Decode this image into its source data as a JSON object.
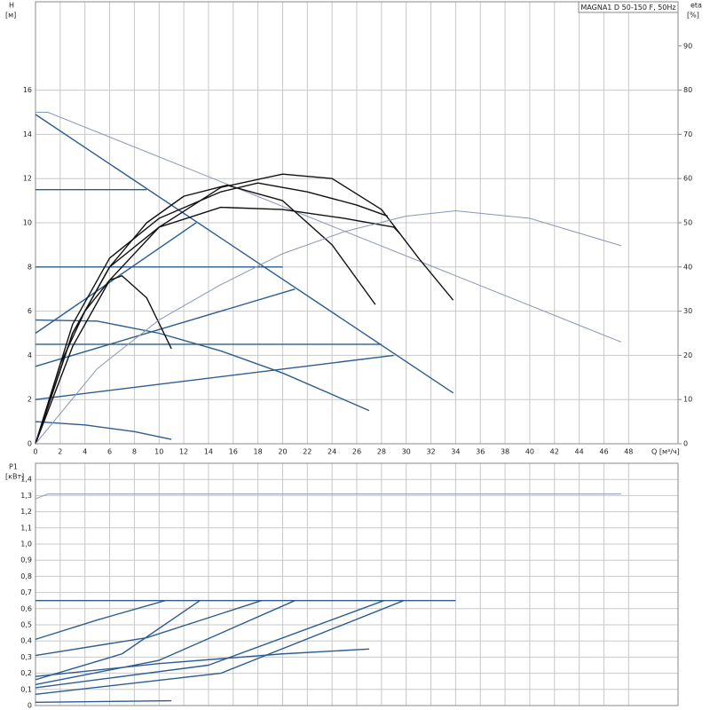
{
  "chart_data": [
    {
      "type": "line",
      "title": "MAGNA1 D 50-150 F, 50Hz",
      "y_label": "H",
      "y_unit": "[м]",
      "y2_label": "eta",
      "y2_unit": "[%]",
      "x_label": "Q [м³/ч]",
      "xlim": [
        0,
        52
      ],
      "xticks": [
        0,
        2,
        4,
        6,
        8,
        10,
        12,
        14,
        16,
        18,
        20,
        22,
        24,
        26,
        28,
        30,
        32,
        34,
        36,
        38,
        40,
        42,
        44,
        46,
        48
      ],
      "ylim": [
        0,
        20
      ],
      "yticks": [
        0,
        2,
        4,
        6,
        8,
        10,
        12,
        14,
        16
      ],
      "y2lim": [
        0,
        100
      ],
      "y2ticks": [
        0,
        10,
        20,
        30,
        40,
        50,
        60,
        70,
        80,
        90
      ],
      "grid": true,
      "series": [
        {
          "color": "#2b5d91",
          "x": [
            0,
            33.8
          ],
          "values": [
            14.9,
            2.3
          ]
        },
        {
          "color": "#2b5d91",
          "x": [
            0,
            9
          ],
          "values": [
            11.5,
            11.5
          ]
        },
        {
          "color": "#2b5d91",
          "x": [
            0,
            20
          ],
          "values": [
            8,
            8
          ]
        },
        {
          "color": "#2b5d91",
          "x": [
            0,
            28
          ],
          "values": [
            4.5,
            4.5
          ]
        },
        {
          "color": "#2b5d91",
          "x": [
            0,
            13
          ],
          "values": [
            5,
            10
          ]
        },
        {
          "color": "#2b5d91",
          "x": [
            0,
            21
          ],
          "values": [
            3.5,
            7
          ]
        },
        {
          "color": "#2b5d91",
          "x": [
            0,
            29
          ],
          "values": [
            2,
            4
          ]
        },
        {
          "color": "#2b5d91",
          "x": [
            0,
            5,
            10,
            15,
            20,
            27
          ],
          "values": [
            5.6,
            5.55,
            5.0,
            4.2,
            3.2,
            1.5
          ]
        },
        {
          "color": "#2b5d91",
          "x": [
            0,
            4,
            8,
            11
          ],
          "values": [
            1.0,
            0.85,
            0.55,
            0.2
          ]
        },
        {
          "color": "#8a96b4",
          "x": [
            0,
            1,
            47.4
          ],
          "values": [
            15,
            15,
            4.6
          ]
        },
        {
          "color": "#111111",
          "axis": "y2",
          "x": [
            0,
            2,
            4,
            6,
            7,
            9,
            11
          ],
          "values": [
            0,
            18,
            30,
            37,
            38,
            33,
            21.5
          ]
        },
        {
          "color": "#111111",
          "axis": "y2",
          "x": [
            0,
            3,
            6,
            9,
            12,
            15.5,
            20,
            24,
            27.5
          ],
          "values": [
            0,
            25,
            40,
            50,
            56,
            58.5,
            55,
            45,
            31.5
          ]
        },
        {
          "color": "#111111",
          "axis": "y2",
          "x": [
            0,
            3,
            6,
            10,
            15,
            20,
            24,
            28,
            31,
            33.8
          ],
          "values": [
            0,
            22,
            37,
            49,
            58,
            61,
            60,
            53,
            42,
            32.5
          ]
        },
        {
          "color": "#111111",
          "axis": "y2",
          "x": [
            0,
            3,
            6,
            10,
            15,
            20,
            25,
            29,
            29.5
          ],
          "values": [
            0,
            25,
            40,
            49,
            53.5,
            53,
            51,
            49,
            47.5
          ]
        },
        {
          "color": "#111111",
          "axis": "y2",
          "x": [
            0,
            3,
            6,
            10,
            15,
            18,
            22,
            26,
            28.5
          ],
          "values": [
            0,
            27,
            42,
            51,
            57,
            59,
            57,
            54,
            51.5
          ]
        },
        {
          "color": "#8a96b4",
          "axis": "y2",
          "x": [
            0,
            5,
            10,
            15,
            20,
            25,
            30,
            34,
            40,
            47.4
          ],
          "values": [
            0,
            17,
            28,
            36,
            43,
            48,
            51.5,
            52.7,
            51,
            44.8
          ]
        }
      ]
    },
    {
      "type": "line",
      "y_label": "P1",
      "y_unit": "[кВт]",
      "xlim": [
        0,
        52
      ],
      "ylim": [
        0,
        1.5
      ],
      "yticks": [
        0,
        {
          "value": 0.1,
          "label": "0,1"
        },
        {
          "value": 0.2,
          "label": "0,2"
        },
        {
          "value": 0.3,
          "label": "0,3"
        },
        {
          "value": 0.4,
          "label": "0,4"
        },
        {
          "value": 0.5,
          "label": "0,5"
        },
        {
          "value": 0.6,
          "label": "0,6"
        },
        {
          "value": 0.7,
          "label": "0,7"
        },
        {
          "value": 0.8,
          "label": "0,8"
        },
        {
          "value": 0.9,
          "label": "0,9"
        },
        {
          "value": 1.0,
          "label": "1,0"
        },
        {
          "value": 1.1,
          "label": "1,1"
        },
        {
          "value": 1.2,
          "label": "1,2"
        },
        {
          "value": 1.3,
          "label": "1,3"
        },
        {
          "value": 1.4,
          "label": "1,4"
        }
      ],
      "grid": true,
      "series": [
        {
          "color": "#2b5d91",
          "x": [
            0,
            34
          ],
          "values": [
            0.65,
            0.65
          ]
        },
        {
          "color": "#2b5d91",
          "x": [
            0,
            5,
            10.5
          ],
          "values": [
            0.41,
            0.53,
            0.65
          ]
        },
        {
          "color": "#2b5d91",
          "x": [
            0,
            9,
            18.3
          ],
          "values": [
            0.31,
            0.42,
            0.65
          ]
        },
        {
          "color": "#2b5d91",
          "x": [
            0,
            7,
            13.3
          ],
          "values": [
            0.16,
            0.32,
            0.65
          ]
        },
        {
          "color": "#2b5d91",
          "x": [
            0,
            10,
            21
          ],
          "values": [
            0.13,
            0.28,
            0.65
          ]
        },
        {
          "color": "#2b5d91",
          "x": [
            0,
            14,
            28.2
          ],
          "values": [
            0.11,
            0.25,
            0.65
          ]
        },
        {
          "color": "#2b5d91",
          "x": [
            0,
            15,
            29.8
          ],
          "values": [
            0.07,
            0.2,
            0.65
          ]
        },
        {
          "color": "#2b5d91",
          "x": [
            0,
            10,
            20,
            27
          ],
          "values": [
            0.18,
            0.26,
            0.32,
            0.35
          ]
        },
        {
          "color": "#2b5d91",
          "x": [
            0,
            11
          ],
          "values": [
            0.02,
            0.03
          ]
        },
        {
          "color": "#8a96b4",
          "x": [
            0,
            1,
            47.4
          ],
          "values": [
            1.28,
            1.31,
            1.31
          ]
        }
      ]
    }
  ]
}
